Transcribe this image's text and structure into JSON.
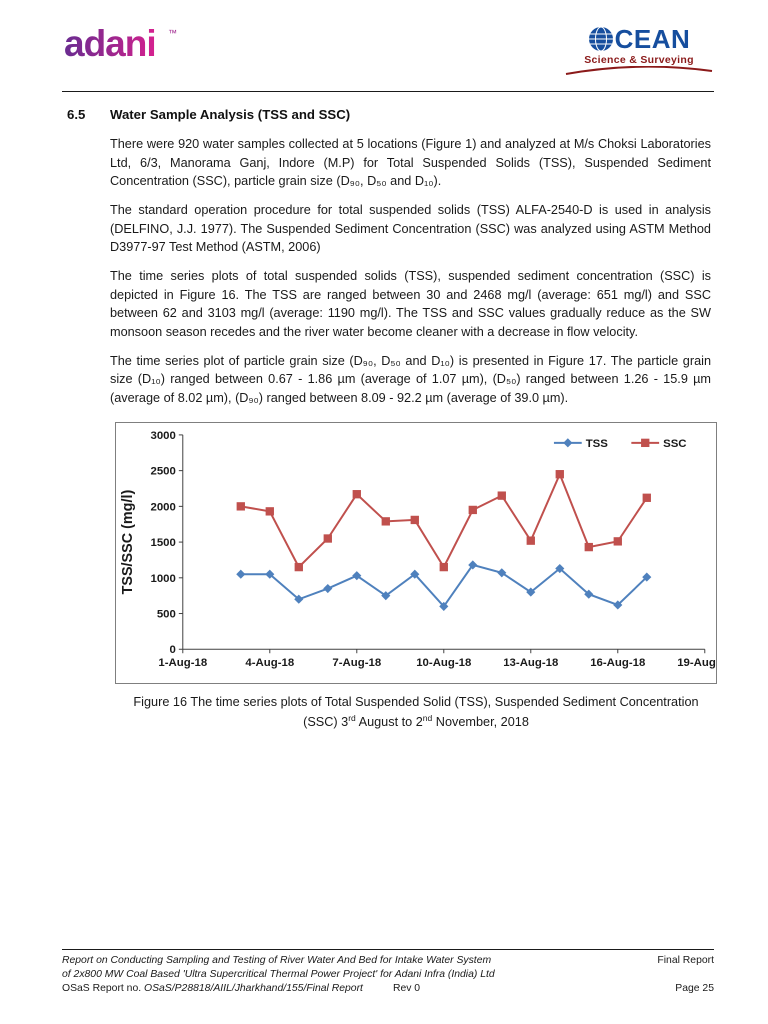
{
  "colors": {
    "adani_purple": "#9B2C8F",
    "ocean_blue": "#164E9E",
    "ocean_red": "#8B1A1A",
    "tss_blue": "#4F81BD",
    "ssc_red": "#C0504D"
  },
  "header": {
    "adani_logo_text": "adani",
    "adani_tm": "™",
    "ocean": {
      "full_name": "OCEAN",
      "title_rest": "CEAN",
      "subtitle": "Science & Surveying"
    }
  },
  "section": {
    "number": "6.5",
    "title": "Water Sample Analysis (TSS and SSC)"
  },
  "paragraphs": [
    "There were 920 water samples collected at 5 locations (Figure 1) and analyzed at M/s Choksi Laboratories Ltd, 6/3, Manorama Ganj, Indore (M.P) for Total Suspended Solids (TSS), Suspended Sediment Concentration (SSC), particle grain size (D₉₀, D₅₀ and D₁₀).",
    "The standard operation procedure for total suspended solids (TSS) ALFA-2540-D is used in analysis (DELFINO, J.J. 1977). The Suspended Sediment Concentration (SSC) was analyzed using ASTM Method D3977-97 Test Method (ASTM, 2006)",
    "The time series plots of total suspended solids (TSS), suspended sediment concentration (SSC) is depicted in Figure 16. The TSS are ranged between 30 and 2468 mg/l (average: 651 mg/l) and SSC between 62 and 3103 mg/l (average: 1190 mg/l). The TSS and SSC values gradually reduce as the SW monsoon season recedes and the river water become cleaner with a decrease in flow velocity.",
    "The time series plot of particle grain size (D₉₀, D₅₀ and D₁₀) is presented in Figure 17. The particle grain size (D₁₀) ranged between 0.67 - 1.86 µm (average of 1.07 µm), (D₅₀) ranged between 1.26 - 15.9 µm (average of 8.02 µm), (D₉₀) ranged between 8.09 - 92.2 µm (average of 39.0 µm)."
  ],
  "figure_caption": {
    "line1": "Figure 16 The time series plots of Total Suspended Solid (TSS), Suspended Sediment Concentration",
    "p1": "(SSC) 3",
    "sup1": "rd",
    "p2": " August to 2",
    "sup2": "nd",
    "p3": " November, 2018"
  },
  "chart_data": {
    "type": "line",
    "title": "",
    "xlabel": "",
    "ylabel": "TSS/SSC (mg/l)",
    "ylim": [
      0,
      3000
    ],
    "ytick_interval": 500,
    "x_range_days": [
      1,
      19
    ],
    "x_tick_days": [
      1,
      4,
      7,
      10,
      13,
      16,
      19
    ],
    "x_ticks": [
      "1-Aug-18",
      "4-Aug-18",
      "7-Aug-18",
      "10-Aug-18",
      "13-Aug-18",
      "16-Aug-18",
      "19-Aug-18"
    ],
    "x_days": [
      3,
      4,
      5,
      6,
      7,
      8,
      9,
      10,
      11,
      12,
      13,
      14,
      15,
      16,
      17
    ],
    "series": [
      {
        "name": "TSS",
        "color": "#4F81BD",
        "marker": "diamond",
        "values": [
          1050,
          1050,
          700,
          850,
          1030,
          750,
          1050,
          600,
          1180,
          1070,
          800,
          1130,
          770,
          620,
          1010
        ]
      },
      {
        "name": "SSC",
        "color": "#C0504D",
        "marker": "square",
        "values": [
          2000,
          1930,
          1150,
          1550,
          2170,
          1790,
          1810,
          1150,
          1950,
          2150,
          1520,
          2450,
          1430,
          1510,
          2120
        ]
      }
    ],
    "legend_position": "top-right",
    "grid": false
  },
  "footer": {
    "line1_left": "Report on Conducting Sampling and Testing of River Water And Bed for Intake Water System",
    "line1_right": "Final Report",
    "line2": "of 2x800 MW Coal Based 'Ultra Supercritical Thermal Power Project' for Adani Infra (India) Ltd",
    "line3_prefix": "OSaS Report no. ",
    "line3_report_no": "OSaS/P28818/AIIL/Jharkhand/155/Final Report",
    "line3_rev": "Rev 0",
    "line3_right": "Page 25"
  }
}
